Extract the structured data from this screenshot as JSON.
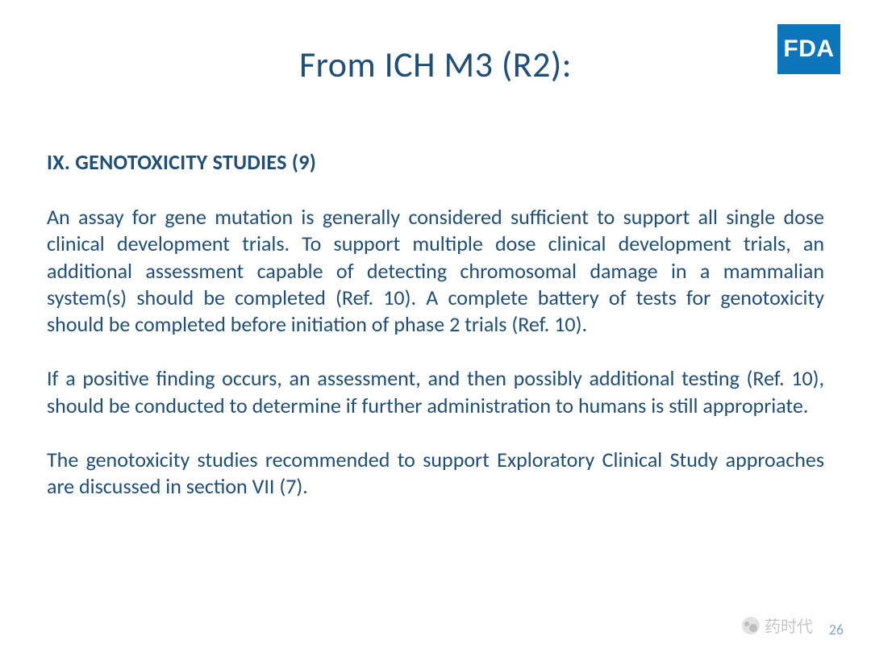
{
  "logo": {
    "text": "FDA",
    "bg_color": "#0c75bc",
    "text_color": "#ffffff"
  },
  "title": "From ICH M3 (R2):",
  "section_heading": "IX. GENOTOXICITY STUDIES (9)",
  "paragraphs": [
    "An assay for gene mutation is generally considered sufficient to support all single dose clinical development trials. To support multiple dose clinical development trials, an additional assessment capable of detecting chromosomal damage in a mammalian system(s) should be completed (Ref. 10). A complete battery of tests for genotoxicity should be completed before initiation of phase 2 trials (Ref. 10).",
    "If a positive finding occurs, an assessment, and then possibly additional testing (Ref. 10), should be conducted to determine if further administration to humans is still appropriate.",
    "The genotoxicity studies recommended to support Exploratory Clinical Study approaches are discussed in section VII (7)."
  ],
  "page_number": "26",
  "watermark_text": "药时代",
  "colors": {
    "title_color": "#1f4e79",
    "body_color": "#1f4e79",
    "background": "#ffffff"
  },
  "typography": {
    "title_fontsize": 44,
    "heading_fontsize": 26,
    "body_fontsize": 26
  }
}
